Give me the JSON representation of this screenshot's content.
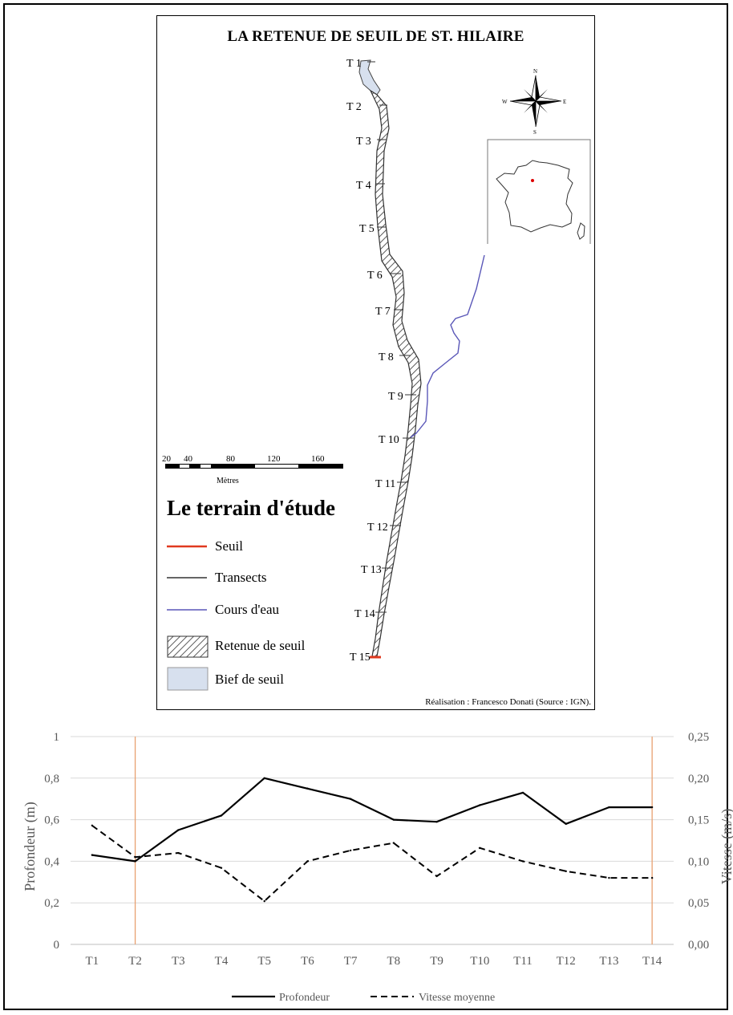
{
  "map": {
    "title": "LA RETENUE DE SEUIL DE ST. HILAIRE",
    "transect_labels": [
      "T 1",
      "T 2",
      "T 3",
      "T 4",
      "T 5",
      "T 6",
      "T 7",
      "T 8",
      "T 9",
      "T 10",
      "T 11",
      "T 12",
      "T 13",
      "T 14",
      "T 15"
    ],
    "compass": {
      "n": "N",
      "s": "S",
      "e": "E",
      "w": "W"
    },
    "scale": {
      "ticks": [
        "20",
        "40",
        "80",
        "120",
        "160"
      ],
      "units": "Mètres"
    },
    "legend_title": "Le terrain d'étude",
    "legend": [
      {
        "label": "Seuil",
        "color": "#e0391f"
      },
      {
        "label": "Transects",
        "color": "#333333"
      },
      {
        "label": "Cours d'eau",
        "color": "#5a57b8"
      },
      {
        "label": "Retenue de seuil",
        "color": "#000000"
      },
      {
        "label": "Bief de seuil",
        "color": "#d7e0ee"
      }
    ],
    "credit": "Réalisation : Francesco Donati (Source : IGN)."
  },
  "chart_data": {
    "type": "line",
    "categories": [
      "T1",
      "T2",
      "T3",
      "T4",
      "T5",
      "T6",
      "T7",
      "T8",
      "T9",
      "T10",
      "T11",
      "T12",
      "T13",
      "T14"
    ],
    "series": [
      {
        "name": "Profondeur",
        "axis": "left",
        "style": "solid",
        "values": [
          0.43,
          0.4,
          0.55,
          0.62,
          0.8,
          0.75,
          0.7,
          0.6,
          0.59,
          0.67,
          0.73,
          0.58,
          0.66,
          0.66
        ]
      },
      {
        "name": "Vitesse moyenne",
        "axis": "right",
        "style": "dashed",
        "values": [
          0.143,
          0.105,
          0.11,
          0.092,
          0.052,
          0.1,
          0.113,
          0.122,
          0.082,
          0.116,
          0.1,
          0.088,
          0.08,
          0.08
        ]
      }
    ],
    "ylabel": "Profondeur (m)",
    "y2label": "Vitesse (m/s)",
    "ylim": [
      0,
      1
    ],
    "y2lim": [
      0,
      0.25
    ],
    "yticks": [
      "0",
      "0,2",
      "0,4",
      "0,6",
      "0,8",
      "1"
    ],
    "y2ticks": [
      "0,00",
      "0,05",
      "0,10",
      "0,15",
      "0,20",
      "0,25"
    ],
    "vertical_markers": [
      "T2",
      "T14"
    ],
    "marker_color": "#e8a070",
    "grid": true,
    "legend_position": "bottom"
  }
}
